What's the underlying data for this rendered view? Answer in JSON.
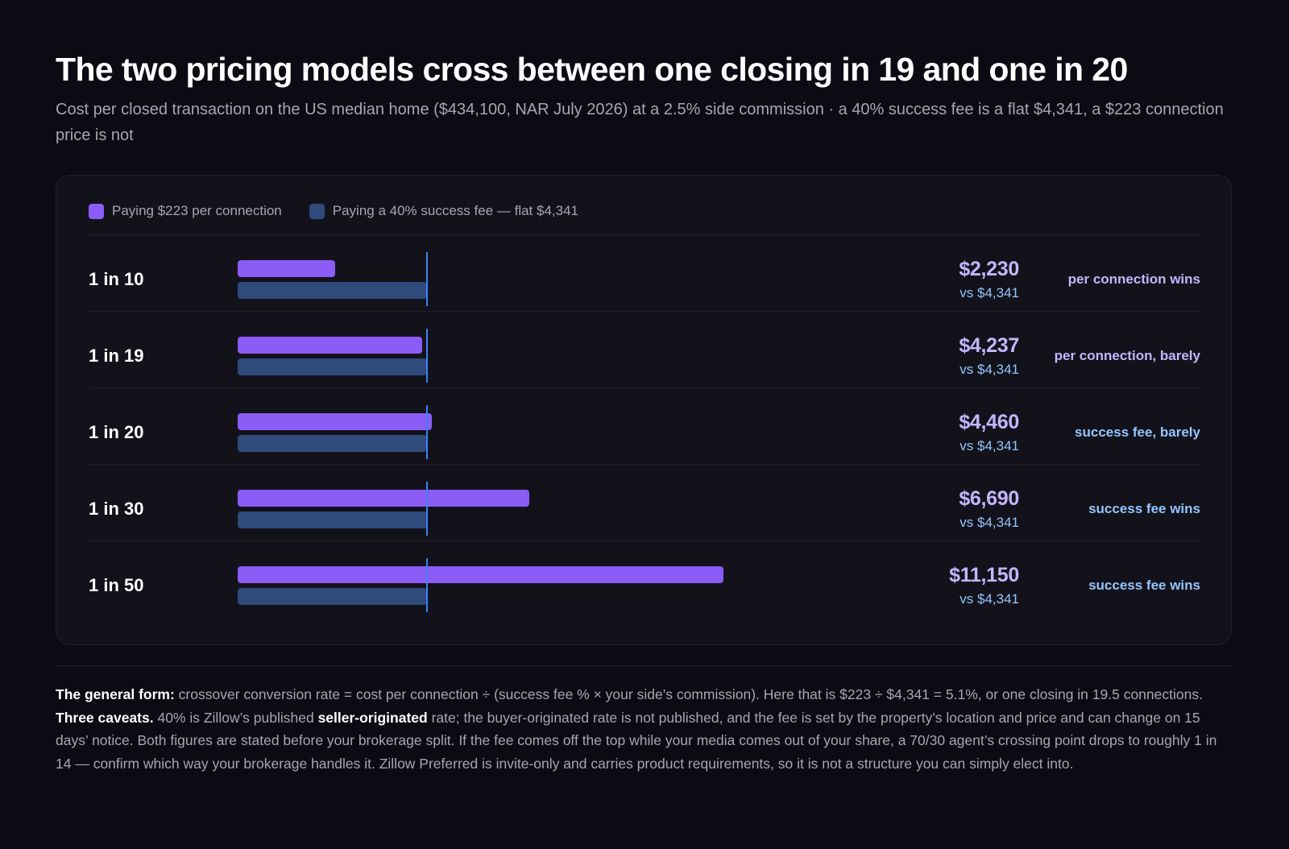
{
  "header": {
    "title": "The two pricing models cross between one closing in 19 and one in 20",
    "subtitle": "Cost per closed transaction on the US median home ($434,100, NAR July 2026) at a 2.5% side commission · a 40% success fee is a flat $4,341, a $223 connection price is not"
  },
  "legend": {
    "connection": "Paying $223 per connection",
    "success_fee": "Paying a 40% success fee — flat $4,341"
  },
  "colors": {
    "connection_bar": "#8b5cf6",
    "success_fee_bar": "#2e4b7c",
    "reference_line": "#3b82f6",
    "connection_wins_text": "#c4b5fd",
    "success_fee_wins_text": "#93c5fd"
  },
  "chart_data": {
    "type": "bar",
    "orientation": "horizontal",
    "categories": [
      "1 in 10",
      "1 in 19",
      "1 in 20",
      "1 in 30",
      "1 in 50"
    ],
    "series": [
      {
        "name": "Paying $223 per connection",
        "values": [
          2230,
          4237,
          4460,
          6690,
          11150
        ]
      },
      {
        "name": "Paying a 40% success fee — flat $4,341",
        "values": [
          4341,
          4341,
          4341,
          4341,
          4341
        ]
      }
    ],
    "reference_line": 4341,
    "xlim": [
      0,
      17000
    ],
    "grid": false,
    "legend_position": "top-left"
  },
  "rows": [
    {
      "label": "1 in 10",
      "value": "$2,230",
      "compare": "vs $4,341",
      "verdict": "per connection wins",
      "winner": "connection"
    },
    {
      "label": "1 in 19",
      "value": "$4,237",
      "compare": "vs $4,341",
      "verdict": "per connection, barely",
      "winner": "connection"
    },
    {
      "label": "1 in 20",
      "value": "$4,460",
      "compare": "vs $4,341",
      "verdict": "success fee, barely",
      "winner": "success_fee"
    },
    {
      "label": "1 in 30",
      "value": "$6,690",
      "compare": "vs $4,341",
      "verdict": "success fee wins",
      "winner": "success_fee"
    },
    {
      "label": "1 in 50",
      "value": "$11,150",
      "compare": "vs $4,341",
      "verdict": "success fee wins",
      "winner": "success_fee"
    }
  ],
  "footnote": {
    "lead_bold": "The general form:",
    "text1": " crossover conversion rate = cost per connection ÷ (success fee % × your side’s commission). Here that is $223 ÷ $4,341 = 5.1%, or one closing in 19.5 connections. ",
    "caveats_bold": "Three caveats.",
    "text2": " 40% is Zillow’s published ",
    "seller_bold": "seller-originated",
    "text3": " rate; the buyer-originated rate is not published, and the fee is set by the property’s location and price and can change on 15 days’ notice. Both figures are stated before your brokerage split. If the fee comes off the top while your media comes out of your share, a 70/30 agent’s crossing point drops to roughly 1 in 14 — confirm which way your brokerage handles it. Zillow Preferred is invite-only and carries product requirements, so it is not a structure you can simply elect into."
  }
}
